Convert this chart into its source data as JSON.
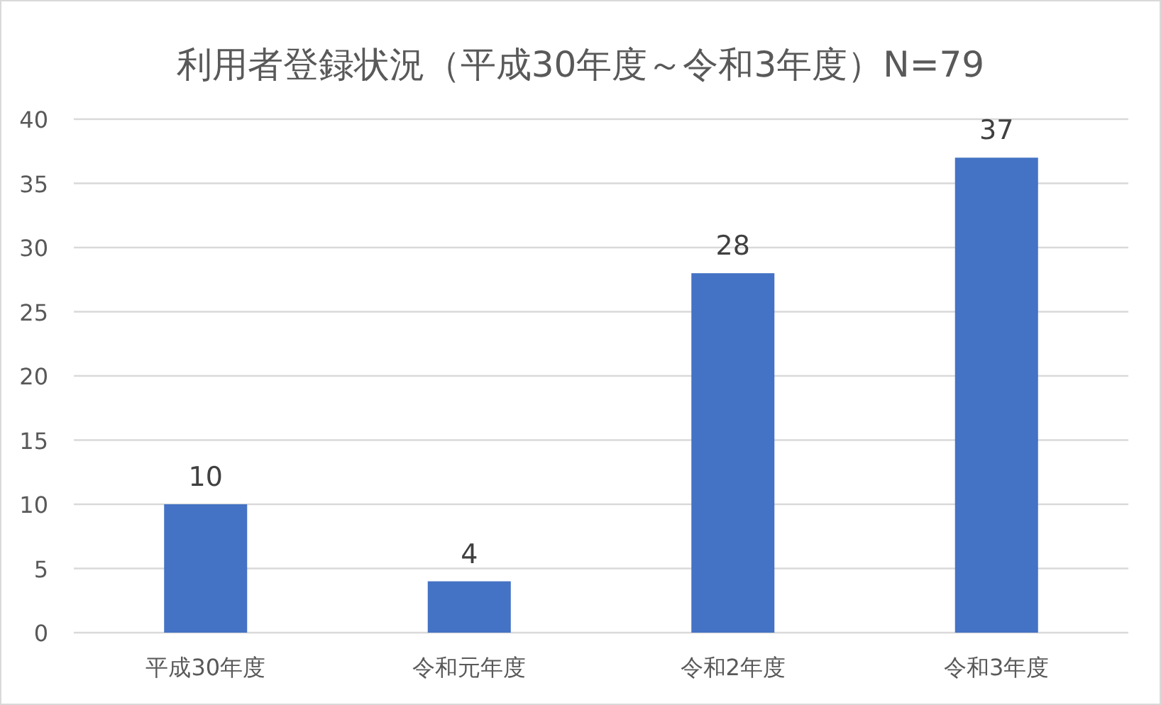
{
  "chart_data": {
    "type": "bar",
    "title": "利用者登録状況（平成30年度～令和3年度）N=79",
    "categories": [
      "平成30年度",
      "令和元年度",
      "令和2年度",
      "令和3年度"
    ],
    "values": [
      10,
      4,
      28,
      37
    ],
    "color": "#4472c4",
    "ylim": [
      0,
      40
    ],
    "yticks": [
      0,
      5,
      10,
      15,
      20,
      25,
      30,
      35,
      40
    ],
    "grid": "y",
    "data_labels": true
  }
}
